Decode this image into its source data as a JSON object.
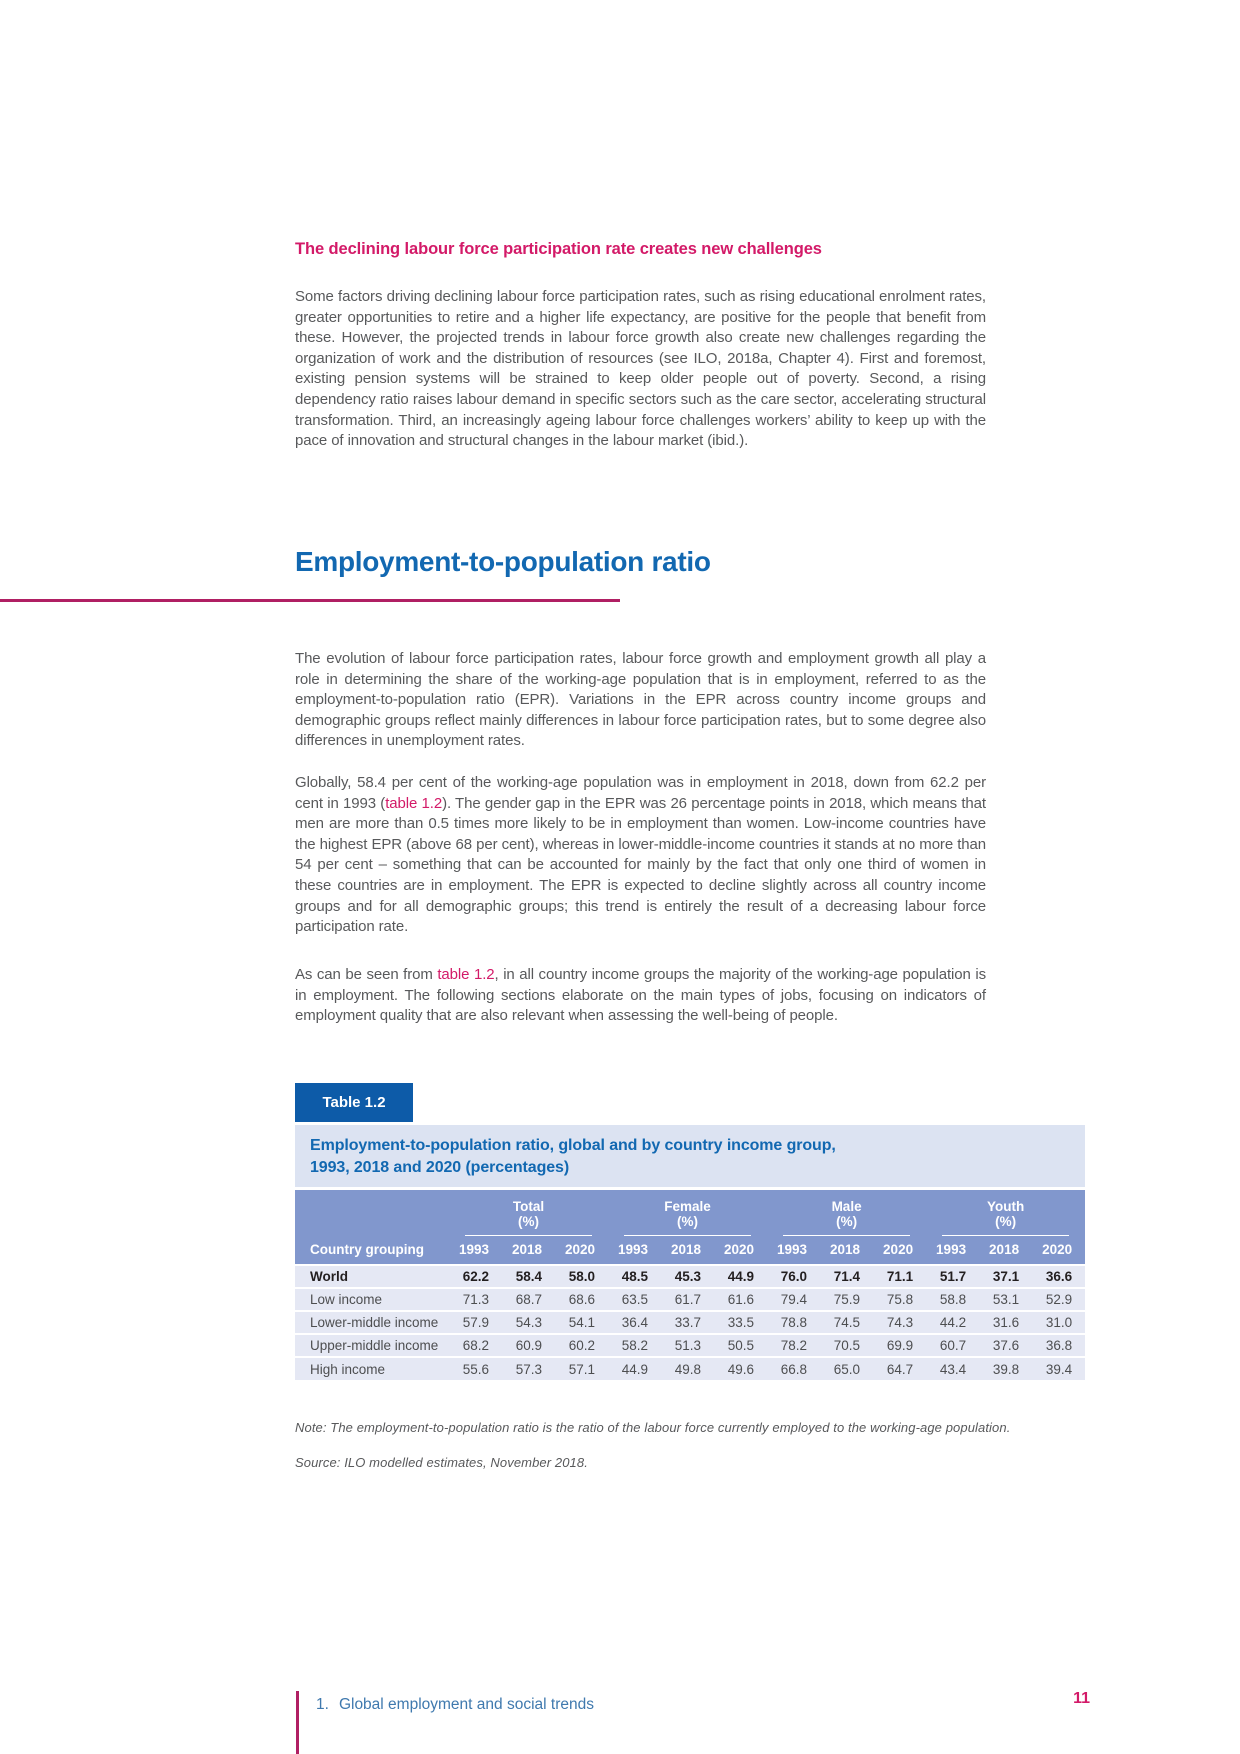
{
  "colors": {
    "pink": "#d31a68",
    "rule-magenta": "#b01f63",
    "blue": "#1268b1",
    "label-box-blue": "#0d5ba8",
    "band": "#8197cd",
    "title-bg": "#dce3f2",
    "row-bg": "#e5e8f4",
    "body-gray": "#58595b",
    "footer-blue": "#3f79ae"
  },
  "content": {
    "section_heading": "The declining labour force participation rate creates new challenges",
    "para1": "Some factors driving declining labour force participation rates, such as rising educational enrolment rates, greater opportunities to retire and a higher life expectancy, are positive for the people that benefit from these. However, the projected trends in labour force growth also create new challenges regarding the organization of work and the distribution of resources (see ILO, 2018a, Chapter 4). First and foremost, existing pension systems will be strained to keep older people out of poverty. Second, a rising dependency ratio raises labour demand in specific sectors such as the care sector, accelerating structural transformation. Third, an increasingly ageing labour force challenges workers’ ability to keep up with the pace of innovation and structural changes in the labour market (ibid.).",
    "chapter_heading": "Employment-to-population ratio",
    "para2": "The evolution of labour force participation rates, labour force growth and employment growth all play a role in determining the share of the working-age population that is in employment, referred to as the employment-to-population ratio (EPR). Variations in the EPR across country income groups and demographic groups reflect mainly differences in labour force participation rates, but to some degree also differences in unemployment rates.",
    "para3_pre": "Globally, 58.4 per cent of the working-age population was in employment in 2018, down from 62.2 per cent in 1993 (",
    "para3_link": "table 1.2",
    "para3_post": "). The gender gap in the EPR was 26 percentage points in 2018, which means that men are more than 0.5 times more likely to be in employment than women. Low-income countries have the highest EPR (above 68 per cent), whereas in lower-middle-income countries it stands at no more than 54 per cent – something that can be accounted for mainly by the fact that only one third of women in these countries are in employment. The EPR is expected to decline slightly across all country income groups and for all demographic groups; this trend is entirely the result of a decreasing labour force participation rate.",
    "para4_pre": "As can be seen from ",
    "para4_link": "table 1.2",
    "para4_post": ", in all country income groups the majority of the working-age population is in employment. The following sections elaborate on the main types of jobs, focusing on indicators of employment quality that are also relevant when assessing the well-being of people."
  },
  "table": {
    "label": "Table 1.2",
    "title_line1": "Employment-to-population ratio, global and by country income group,",
    "title_line2": "1993, 2018 and 2020 (percentages)",
    "first_col_header": "Country grouping",
    "groups": [
      {
        "name": "Total",
        "unit": "(%)"
      },
      {
        "name": "Female",
        "unit": "(%)"
      },
      {
        "name": "Male",
        "unit": "(%)"
      },
      {
        "name": "Youth",
        "unit": "(%)"
      }
    ],
    "years": [
      "1993",
      "2018",
      "2020"
    ],
    "rows": [
      {
        "label": "World",
        "bold": true,
        "values": [
          "62.2",
          "58.4",
          "58.0",
          "48.5",
          "45.3",
          "44.9",
          "76.0",
          "71.4",
          "71.1",
          "51.7",
          "37.1",
          "36.6"
        ]
      },
      {
        "label": "Low income",
        "bold": false,
        "values": [
          "71.3",
          "68.7",
          "68.6",
          "63.5",
          "61.7",
          "61.6",
          "79.4",
          "75.9",
          "75.8",
          "58.8",
          "53.1",
          "52.9"
        ]
      },
      {
        "label": "Lower-middle income",
        "bold": false,
        "values": [
          "57.9",
          "54.3",
          "54.1",
          "36.4",
          "33.7",
          "33.5",
          "78.8",
          "74.5",
          "74.3",
          "44.2",
          "31.6",
          "31.0"
        ]
      },
      {
        "label": "Upper-middle income",
        "bold": false,
        "values": [
          "68.2",
          "60.9",
          "60.2",
          "58.2",
          "51.3",
          "50.5",
          "78.2",
          "70.5",
          "69.9",
          "60.7",
          "37.6",
          "36.8"
        ]
      },
      {
        "label": "High income",
        "bold": false,
        "values": [
          "55.6",
          "57.3",
          "57.1",
          "44.9",
          "49.8",
          "49.6",
          "66.8",
          "65.0",
          "64.7",
          "43.4",
          "39.8",
          "39.4"
        ]
      }
    ],
    "note": "Note: The employment-to-population ratio is the ratio of the labour force currently employed to the working-age population.",
    "source": "Source: ILO modelled estimates, November 2018."
  },
  "footer": {
    "chapter_number": "1.",
    "chapter_title": "Global employment and social trends",
    "page_number": "11"
  }
}
